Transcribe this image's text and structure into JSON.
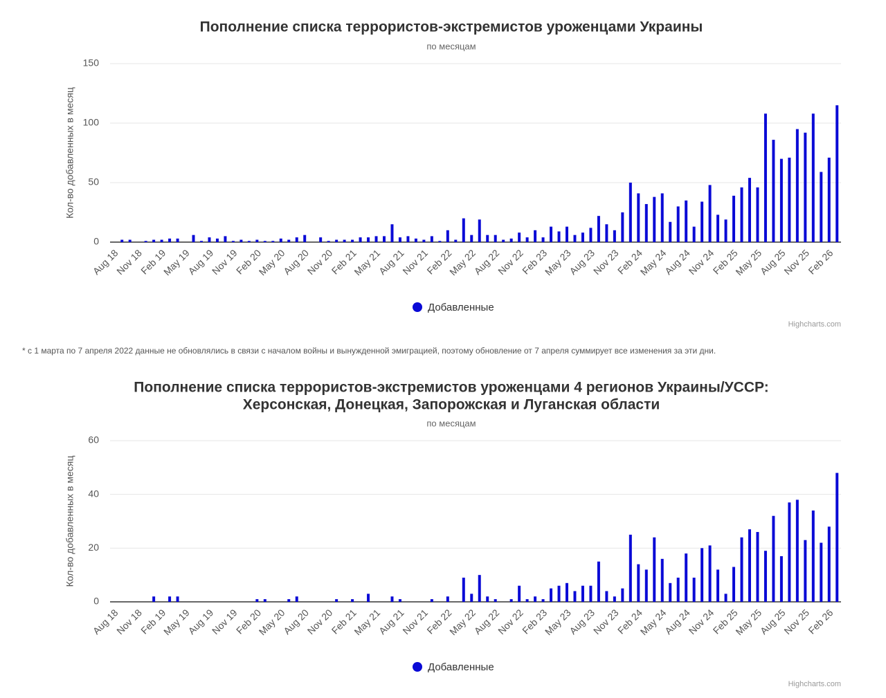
{
  "chart_data": [
    {
      "type": "bar",
      "title": [
        "Пополнение списка террористов-экстремистов уроженцами Украины"
      ],
      "subtitle": "по месяцам",
      "y_label": "Кол-во добавленных в месяц",
      "credits": "Highcharts.com",
      "categories": [
        "Aug 18",
        null,
        null,
        "Nov 18",
        null,
        null,
        "Feb 19",
        null,
        null,
        "May 19",
        null,
        null,
        "Aug 19",
        null,
        null,
        "Nov 19",
        null,
        null,
        "Feb 20",
        null,
        null,
        "May 20",
        null,
        null,
        "Aug 20",
        null,
        null,
        "Nov 20",
        null,
        null,
        "Feb 21",
        null,
        null,
        "May 21",
        null,
        null,
        "Aug 21",
        null,
        null,
        "Nov 21",
        null,
        null,
        "Feb 22",
        null,
        null,
        "May 22",
        null,
        null,
        "Aug 22",
        null,
        null,
        "Nov 22",
        null,
        null,
        "Feb 23",
        null,
        null,
        "May 23",
        null,
        null,
        "Aug 23",
        null,
        null,
        "Nov 23",
        null,
        null,
        "Feb 24",
        null,
        null,
        "May 24",
        null,
        null,
        "Aug 24",
        null,
        null,
        "Nov 24",
        null,
        null,
        "Feb 25",
        null,
        null,
        "May 25",
        null,
        null,
        "Aug 25",
        null,
        null,
        "Nov 25",
        null,
        null,
        "Feb 26",
        null
      ],
      "series": [
        {
          "name": "Добавленные",
          "color": "#0a0ad6",
          "values": [
            0,
            2,
            2,
            0,
            1,
            2,
            2,
            3,
            3,
            0,
            6,
            1,
            4,
            3,
            5,
            1,
            2,
            1,
            2,
            1,
            1,
            3,
            2,
            4,
            6,
            0,
            4,
            1,
            2,
            2,
            2,
            4,
            4,
            5,
            5,
            15,
            4,
            5,
            3,
            2,
            5,
            1,
            10,
            2,
            20,
            6,
            19,
            6,
            6,
            2,
            3,
            8,
            4,
            10,
            4,
            13,
            9,
            13,
            6,
            8,
            12,
            22,
            15,
            10,
            25,
            50,
            41,
            32,
            38,
            41,
            17,
            30,
            35,
            13,
            34,
            48,
            23,
            19,
            39,
            46,
            54,
            46,
            108,
            86,
            70,
            71,
            95,
            92,
            108,
            59,
            71,
            115
          ]
        }
      ],
      "ylim": [
        0,
        150
      ],
      "yticks": [
        0,
        50,
        100,
        150
      ],
      "grid": true
    },
    {
      "type": "bar",
      "title": [
        "Пополнение списка террористов-экстремистов уроженцами 4 регионов Украины/УССР:",
        "Херсонская, Донецкая, Запорожская и Луганская области"
      ],
      "subtitle": "по месяцам",
      "y_label": "Кол-во добавленных в месяц",
      "credits": "Highcharts.com",
      "categories": [
        "Aug 18",
        null,
        null,
        "Nov 18",
        null,
        null,
        "Feb 19",
        null,
        null,
        "May 19",
        null,
        null,
        "Aug 19",
        null,
        null,
        "Nov 19",
        null,
        null,
        "Feb 20",
        null,
        null,
        "May 20",
        null,
        null,
        "Aug 20",
        null,
        null,
        "Nov 20",
        null,
        null,
        "Feb 21",
        null,
        null,
        "May 21",
        null,
        null,
        "Aug 21",
        null,
        null,
        "Nov 21",
        null,
        null,
        "Feb 22",
        null,
        null,
        "May 22",
        null,
        null,
        "Aug 22",
        null,
        null,
        "Nov 22",
        null,
        null,
        "Feb 23",
        null,
        null,
        "May 23",
        null,
        null,
        "Aug 23",
        null,
        null,
        "Nov 23",
        null,
        null,
        "Feb 24",
        null,
        null,
        "May 24",
        null,
        null,
        "Aug 24",
        null,
        null,
        "Nov 24",
        null,
        null,
        "Feb 25",
        null,
        null,
        "May 25",
        null,
        null,
        "Aug 25",
        null,
        null,
        "Nov 25",
        null,
        null,
        "Feb 26",
        null
      ],
      "series": [
        {
          "name": "Добавленные",
          "color": "#0a0ad6",
          "values": [
            0,
            0,
            0,
            0,
            0,
            2,
            0,
            2,
            2,
            0,
            0,
            0,
            0,
            0,
            0,
            0,
            0,
            0,
            1,
            1,
            0,
            0,
            1,
            2,
            0,
            0,
            0,
            0,
            1,
            0,
            1,
            0,
            3,
            0,
            0,
            2,
            1,
            0,
            0,
            0,
            1,
            0,
            2,
            0,
            9,
            3,
            10,
            2,
            1,
            0,
            1,
            6,
            1,
            2,
            1,
            5,
            6,
            7,
            4,
            6,
            6,
            15,
            4,
            2,
            5,
            25,
            14,
            12,
            24,
            16,
            7,
            9,
            18,
            9,
            20,
            21,
            12,
            3,
            13,
            24,
            27,
            26,
            19,
            32,
            17,
            37,
            38,
            23,
            34,
            22,
            28,
            48
          ]
        }
      ],
      "ylim": [
        0,
        60
      ],
      "yticks": [
        0,
        20,
        40,
        60
      ],
      "grid": true
    }
  ],
  "note": "* с 1 марта по 7 апреля 2022 данные не обновлялись в связи с началом войны и вынужденной эмиграцией, поэтому обновление от 7 апреля суммирует все изменения за эти дни."
}
